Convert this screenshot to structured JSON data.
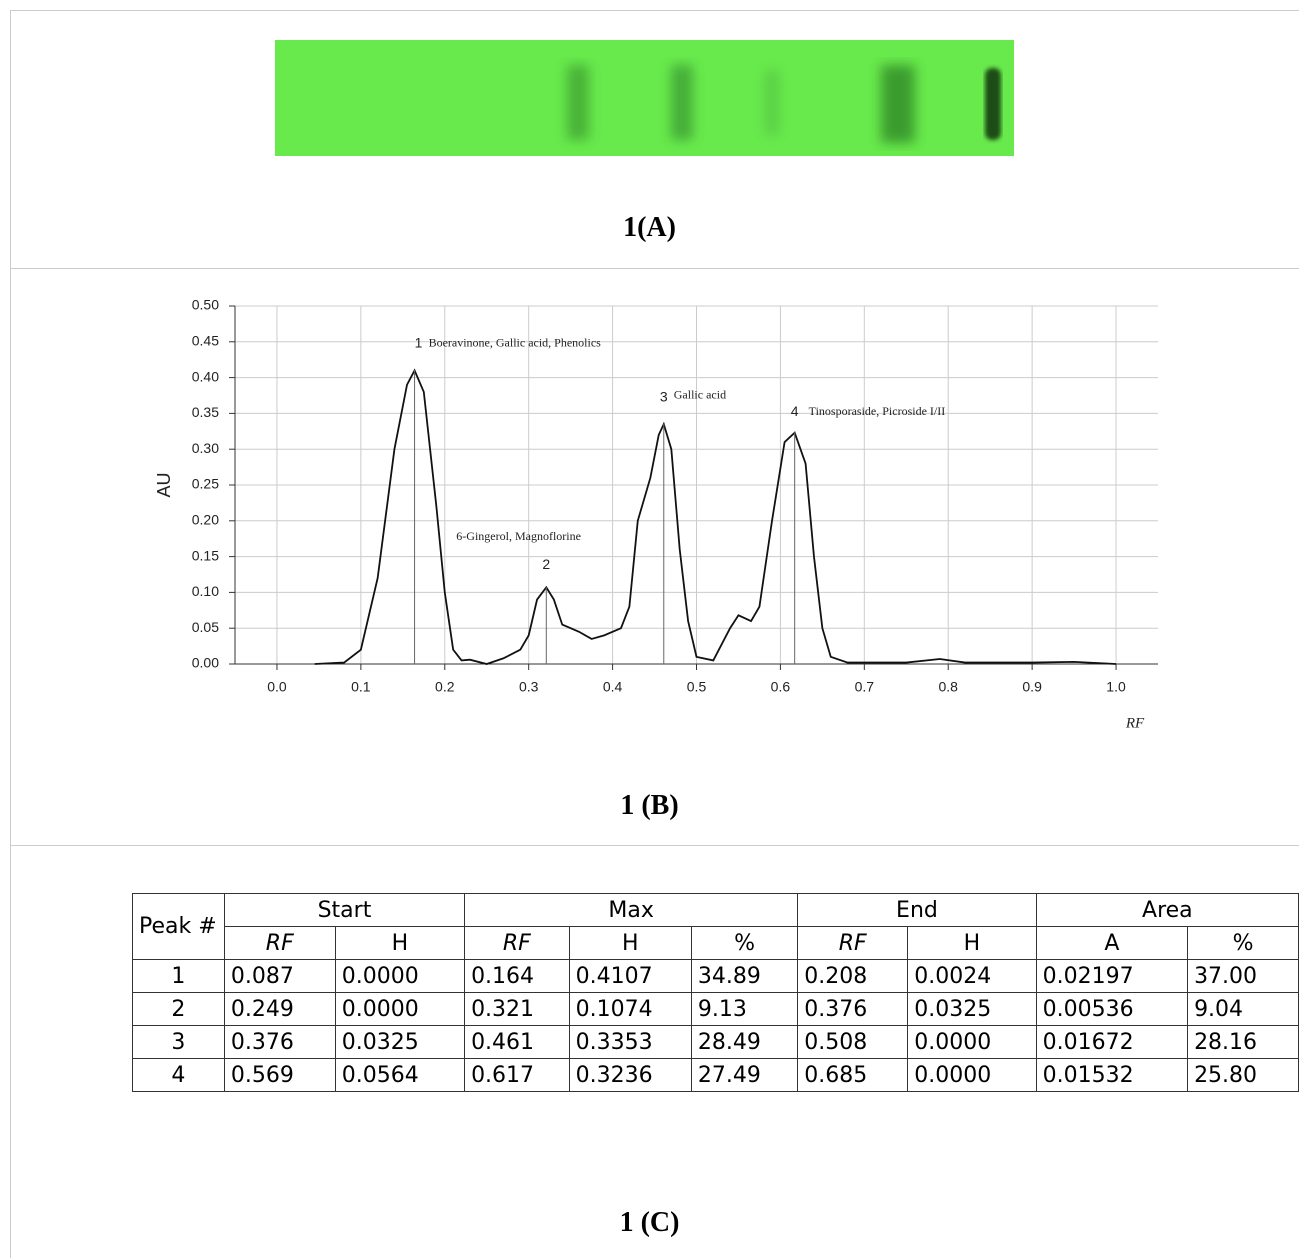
{
  "panel_a": {
    "label": "1(A)"
  },
  "chart_data": {
    "type": "line",
    "y_label": "AU",
    "x_label": "RF",
    "color": "#111111",
    "grid": true,
    "x": [
      0.045,
      0.08,
      0.1,
      0.12,
      0.14,
      0.155,
      0.164,
      0.175,
      0.19,
      0.2,
      0.21,
      0.22,
      0.23,
      0.25,
      0.27,
      0.29,
      0.3,
      0.31,
      0.321,
      0.33,
      0.34,
      0.36,
      0.375,
      0.39,
      0.41,
      0.42,
      0.43,
      0.445,
      0.455,
      0.461,
      0.47,
      0.48,
      0.49,
      0.5,
      0.52,
      0.54,
      0.55,
      0.565,
      0.575,
      0.59,
      0.605,
      0.617,
      0.63,
      0.64,
      0.65,
      0.66,
      0.68,
      0.75,
      0.79,
      0.82,
      0.9,
      0.95,
      1.0
    ],
    "values": [
      0,
      0.002,
      0.02,
      0.12,
      0.3,
      0.39,
      0.41,
      0.38,
      0.22,
      0.1,
      0.02,
      0.005,
      0.006,
      0.0,
      0.008,
      0.02,
      0.04,
      0.09,
      0.107,
      0.09,
      0.055,
      0.045,
      0.035,
      0.04,
      0.05,
      0.08,
      0.2,
      0.26,
      0.32,
      0.335,
      0.3,
      0.16,
      0.06,
      0.01,
      0.005,
      0.05,
      0.068,
      0.06,
      0.08,
      0.2,
      0.31,
      0.323,
      0.28,
      0.15,
      0.05,
      0.01,
      0.002,
      0.002,
      0.007,
      0.002,
      0.002,
      0.003,
      0.0
    ],
    "xlim": [
      -0.05,
      1.05
    ],
    "xticks": [
      {
        "value": 0,
        "label": "0.0"
      },
      0.1,
      0.2,
      0.3,
      0.4,
      0.5,
      0.6,
      0.7,
      0.8,
      0.9,
      {
        "value": 1,
        "label": "1.0"
      }
    ],
    "ylim": [
      0,
      0.5
    ],
    "yticks": [
      {
        "value": 0,
        "label": "0.00"
      },
      0.05,
      {
        "value": 0.1,
        "label": "0.10"
      },
      0.15,
      {
        "value": 0.2,
        "label": "0.20"
      },
      0.25,
      {
        "value": 0.3,
        "label": "0.30"
      },
      0.35,
      {
        "value": 0.4,
        "label": "0.40"
      },
      0.45,
      {
        "value": 0.5,
        "label": "0.50"
      }
    ],
    "peaks": [
      {
        "number": 1,
        "label": "Boeravinone, Gallic acid, Phenolics",
        "x": 0.164,
        "y": 0.4107
      },
      {
        "number": 2,
        "label": "6-Gingerol, Magnoflorine",
        "x": 0.321,
        "y": 0.1074
      },
      {
        "number": 3,
        "label": "Gallic acid",
        "x": 0.461,
        "y": 0.3353
      },
      {
        "number": 4,
        "label": "Tinosporaside, Picroside I/II",
        "x": 0.617,
        "y": 0.3236
      }
    ]
  },
  "panel_b": {
    "label": "1 (B)"
  },
  "table": {
    "header_groups": [
      "Peak #",
      "Start",
      "Max",
      "End",
      "Area"
    ],
    "sub_headers": [
      "RF",
      "H",
      "RF",
      "H",
      "%",
      "RF",
      "H",
      "A",
      "%"
    ],
    "rows": [
      [
        "1",
        "0.087",
        "0.0000",
        "0.164",
        "0.4107",
        "34.89",
        "0.208",
        "0.0024",
        "0.02197",
        "37.00"
      ],
      [
        "2",
        "0.249",
        "0.0000",
        "0.321",
        "0.1074",
        "9.13",
        "0.376",
        "0.0325",
        "0.00536",
        "9.04"
      ],
      [
        "3",
        "0.376",
        "0.0325",
        "0.461",
        "0.3353",
        "28.49",
        "0.508",
        "0.0000",
        "0.01672",
        "28.16"
      ],
      [
        "4",
        "0.569",
        "0.0564",
        "0.617",
        "0.3236",
        "27.49",
        "0.685",
        "0.0000",
        "0.01532",
        "25.80"
      ]
    ]
  },
  "panel_c": {
    "label": "1 (C)"
  }
}
